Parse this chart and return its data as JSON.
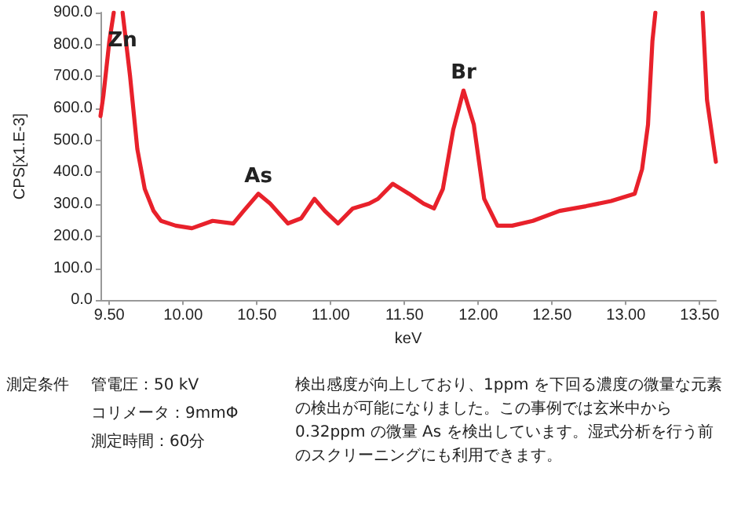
{
  "chart_data": {
    "type": "line",
    "xlabel": "keV",
    "ylabel": "CPS[x1.E-3]",
    "xlim": [
      9.44,
      13.61
    ],
    "ylim": [
      0,
      900
    ],
    "xticks": [
      {
        "value": 9.5,
        "label": "9.50"
      },
      {
        "value": 10,
        "label": "10.00"
      },
      {
        "value": 10.5,
        "label": "10.50"
      },
      {
        "value": 11,
        "label": "11.00"
      },
      {
        "value": 11.5,
        "label": "11.50"
      },
      {
        "value": 12,
        "label": "12.00"
      },
      {
        "value": 12.5,
        "label": "12.50"
      },
      {
        "value": 13,
        "label": "13.00"
      },
      {
        "value": 13.5,
        "label": "13.50"
      }
    ],
    "yticks": [
      {
        "value": 0,
        "label": "0.0"
      },
      {
        "value": 100,
        "label": "100.0"
      },
      {
        "value": 200,
        "label": "200.0"
      },
      {
        "value": 300,
        "label": "300.0"
      },
      {
        "value": 400,
        "label": "400.0"
      },
      {
        "value": 500,
        "label": "500.0"
      },
      {
        "value": 600,
        "label": "600.0"
      },
      {
        "value": 700,
        "label": "700.0"
      },
      {
        "value": 800,
        "label": "800.0"
      },
      {
        "value": 900,
        "label": "900.0"
      }
    ],
    "grid": false,
    "marker": "none",
    "line_style": "solid",
    "series": [
      {
        "color": "#e8212b",
        "x": [
          9.44,
          9.46,
          9.5,
          9.53,
          9.56,
          9.59,
          9.64,
          9.69,
          9.74,
          9.8,
          9.85,
          9.95,
          10.06,
          10.2,
          10.34,
          10.41,
          10.51,
          10.59,
          10.71,
          10.8,
          10.89,
          10.96,
          11.05,
          11.15,
          11.26,
          11.32,
          11.42,
          11.53,
          11.63,
          11.7,
          11.76,
          11.83,
          11.9,
          11.97,
          12.04,
          12.13,
          12.23,
          12.37,
          12.55,
          12.73,
          12.9,
          13.06,
          13.11,
          13.15,
          13.18,
          13.2,
          13.36,
          13.52,
          13.55,
          13.61
        ],
        "values": [
          576,
          641,
          810,
          900,
          null,
          900,
          703,
          472,
          348,
          279,
          248,
          233,
          225,
          248,
          240,
          279,
          333,
          302,
          240,
          256,
          317,
          279,
          240,
          287,
          302,
          317,
          364,
          333,
          302,
          287,
          348,
          533,
          656,
          549,
          317,
          233,
          233,
          248,
          279,
          294,
          310,
          333,
          410,
          549,
          811,
          900,
          null,
          900,
          626,
          433
        ]
      }
    ],
    "annotations": [
      {
        "text": "Zn",
        "x": 9.59,
        "y": 770
      },
      {
        "text": "As",
        "x": 10.51,
        "y": 345
      },
      {
        "text": "Br",
        "x": 11.9,
        "y": 670
      },
      "測定条件",
      "管電圧：50 kV",
      "コリメータ：9mmΦ",
      "測定時間：60分",
      "検出感度が向上しており、1ppm を下回る濃度の微量な元素の検出が可能になりました。この事例では玄米中から 0.32ppm の微量 As を検出しています。湿式分析を行う前のスクリーニングにも利用できます。"
    ]
  }
}
